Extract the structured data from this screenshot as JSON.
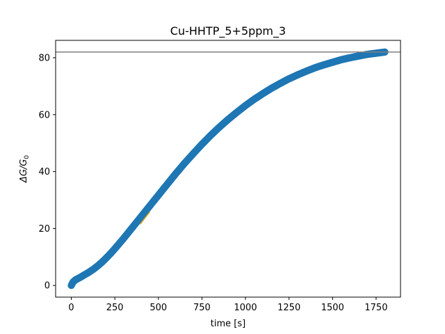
{
  "chart_data": {
    "type": "scatter",
    "title": "Cu-HHTP_5+5ppm_3",
    "xlabel": "time [s]",
    "ylabel": "ΔG/G",
    "ylabel_subscript": "0",
    "xlim": [
      -90,
      1890
    ],
    "ylim": [
      -4.1,
      86.1
    ],
    "x_ticks": [
      0,
      250,
      500,
      750,
      1000,
      1250,
      1500,
      1750
    ],
    "y_ticks": [
      0,
      20,
      40,
      60,
      80
    ],
    "grid": false,
    "series": [
      {
        "color": "#1f77b4",
        "marker": "circle",
        "x": [
          0,
          10,
          25,
          50,
          75,
          100,
          125,
          150,
          175,
          200,
          225,
          250,
          275,
          300,
          325,
          350,
          375,
          400,
          425,
          450,
          475,
          500,
          550,
          600,
          650,
          700,
          750,
          800,
          850,
          900,
          950,
          1000,
          1050,
          1100,
          1150,
          1200,
          1250,
          1300,
          1350,
          1400,
          1450,
          1500,
          1550,
          1600,
          1650,
          1700,
          1750,
          1800
        ],
        "y": [
          0,
          1.2,
          2.0,
          2.8,
          3.7,
          4.6,
          5.6,
          6.8,
          8.1,
          9.6,
          11.2,
          12.9,
          14.7,
          16.5,
          18.4,
          20.3,
          22.2,
          24.1,
          26.0,
          27.9,
          29.8,
          31.7,
          35.5,
          39.3,
          42.9,
          46.3,
          49.6,
          52.7,
          55.6,
          58.3,
          60.8,
          63.2,
          65.4,
          67.4,
          69.3,
          71.0,
          72.6,
          74.0,
          75.3,
          76.5,
          77.5,
          78.4,
          79.3,
          80.0,
          80.6,
          81.2,
          81.6,
          82.0
        ]
      }
    ],
    "fit_segment": {
      "color": "#d4a017",
      "x": [
        395,
        450
      ],
      "y": [
        21.5,
        25.8
      ]
    },
    "horizontal_line": {
      "color": "#808080",
      "y": 82.0
    }
  }
}
